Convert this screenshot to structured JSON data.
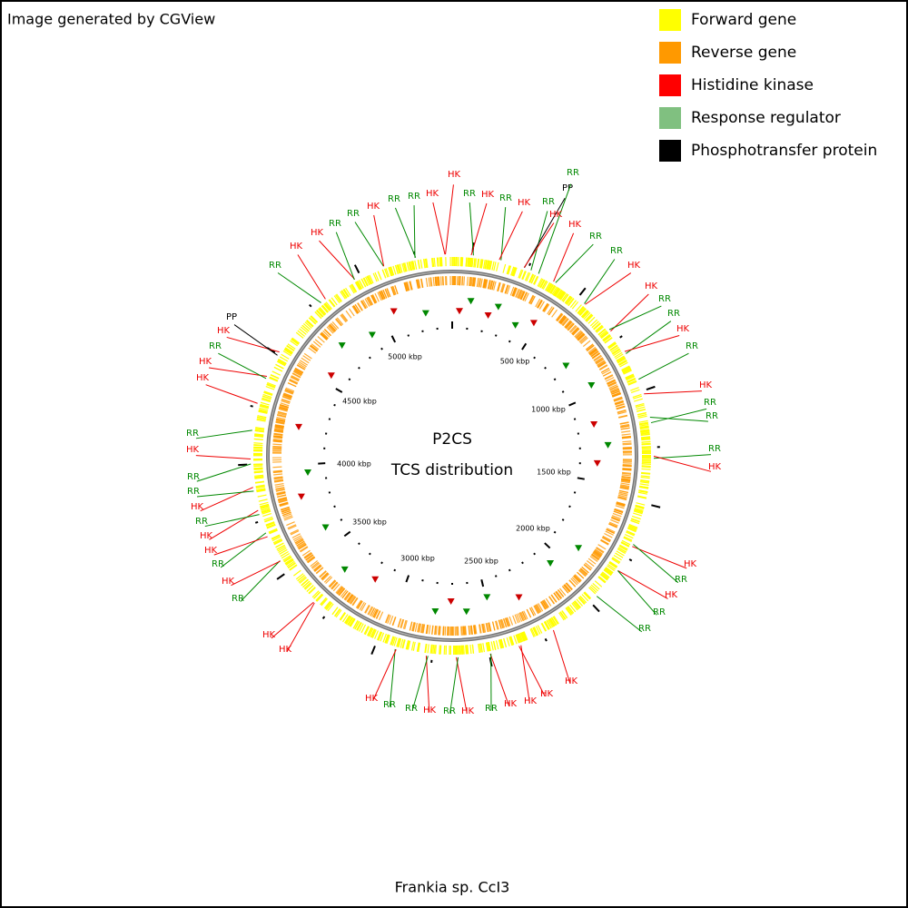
{
  "header": {
    "credit": "Image generated by CGView"
  },
  "legend": [
    {
      "label": "Forward gene",
      "color": "#ffff00"
    },
    {
      "label": "Reverse gene",
      "color": "#ff9900"
    },
    {
      "label": "Histidine kinase",
      "color": "#ff0000"
    },
    {
      "label": "Response regulator",
      "color": "#80c080"
    },
    {
      "label": "Phosphotransfer protein",
      "color": "#000000"
    }
  ],
  "center": {
    "title": "P2CS",
    "subtitle": "TCS distribution"
  },
  "footer": {
    "organism": "Frankia sp. CcI3"
  },
  "ruler_labels": [
    "500 kbp",
    "1000 kbp",
    "1500 kbp",
    "2000 kbp",
    "2500 kbp",
    "3000 kbp",
    "3500 kbp",
    "4000 kbp",
    "4500 kbp",
    "5000 kbp"
  ],
  "feature_labels": [
    "HK",
    "RR",
    "HK",
    "RR",
    "HK",
    "RR",
    "PP",
    "RR",
    "HK",
    "HK",
    "RR",
    "RR",
    "HK",
    "HK",
    "RR",
    "RR",
    "HK",
    "RR",
    "HK",
    "RR",
    "RR",
    "RR",
    "HK",
    "HK",
    "RR",
    "HK",
    "RR",
    "RR",
    "HK",
    "HK",
    "HK",
    "HK",
    "RR",
    "HK",
    "RR",
    "HK",
    "RR",
    "RR",
    "HK",
    "HK",
    "HK",
    "RR",
    "HK",
    "RR",
    "HK",
    "HK",
    "RR",
    "HK",
    "RR",
    "RR",
    "HK",
    "RR",
    "HK",
    "HK",
    "RR",
    "HK",
    "PP",
    "RR",
    "HK",
    "HK",
    "RR",
    "RR",
    "HK",
    "RR",
    "RR",
    "HK"
  ]
}
